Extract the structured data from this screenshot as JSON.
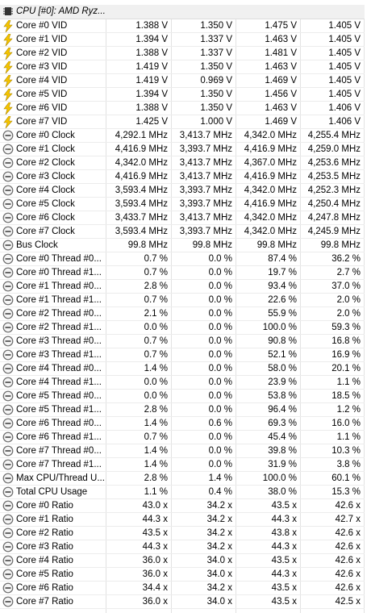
{
  "header": {
    "title": "CPU [#0]: AMD Ryz..."
  },
  "sections": [
    {
      "rows": [
        [
          "Core #0 VID",
          "1.388 V",
          "1.350 V",
          "1.475 V",
          "1.405 V"
        ],
        [
          "Core #1 VID",
          "1.394 V",
          "1.337 V",
          "1.463 V",
          "1.405 V"
        ],
        [
          "Core #2 VID",
          "1.388 V",
          "1.337 V",
          "1.481 V",
          "1.405 V"
        ],
        [
          "Core #3 VID",
          "1.419 V",
          "1.350 V",
          "1.463 V",
          "1.405 V"
        ],
        [
          "Core #4 VID",
          "1.419 V",
          "0.969 V",
          "1.469 V",
          "1.405 V"
        ],
        [
          "Core #5 VID",
          "1.394 V",
          "1.350 V",
          "1.456 V",
          "1.405 V"
        ],
        [
          "Core #6 VID",
          "1.388 V",
          "1.350 V",
          "1.463 V",
          "1.406 V"
        ],
        [
          "Core #7 VID",
          "1.425 V",
          "1.000 V",
          "1.469 V",
          "1.406 V"
        ]
      ]
    },
    {
      "rows": [
        [
          "Core #0 Clock",
          "4,292.1 MHz",
          "3,413.7 MHz",
          "4,342.0 MHz",
          "4,255.4 MHz"
        ],
        [
          "Core #1 Clock",
          "4,416.9 MHz",
          "3,393.7 MHz",
          "4,416.9 MHz",
          "4,259.0 MHz"
        ],
        [
          "Core #2 Clock",
          "4,342.0 MHz",
          "3,413.7 MHz",
          "4,367.0 MHz",
          "4,253.6 MHz"
        ],
        [
          "Core #3 Clock",
          "4,416.9 MHz",
          "3,413.7 MHz",
          "4,416.9 MHz",
          "4,253.5 MHz"
        ],
        [
          "Core #4 Clock",
          "3,593.4 MHz",
          "3,393.7 MHz",
          "4,342.0 MHz",
          "4,252.3 MHz"
        ],
        [
          "Core #5 Clock",
          "3,593.4 MHz",
          "3,393.7 MHz",
          "4,416.9 MHz",
          "4,250.4 MHz"
        ],
        [
          "Core #6 Clock",
          "3,433.7 MHz",
          "3,413.7 MHz",
          "4,342.0 MHz",
          "4,247.8 MHz"
        ],
        [
          "Core #7 Clock",
          "3,593.4 MHz",
          "3,393.7 MHz",
          "4,342.0 MHz",
          "4,245.9 MHz"
        ],
        [
          "Bus Clock",
          "99.8 MHz",
          "99.8 MHz",
          "99.8 MHz",
          "99.8 MHz"
        ],
        [
          "Core #0 Thread #0...",
          "0.7 %",
          "0.0 %",
          "87.4 %",
          "36.2 %"
        ],
        [
          "Core #0 Thread #1...",
          "0.7 %",
          "0.0 %",
          "19.7 %",
          "2.7 %"
        ],
        [
          "Core #1 Thread #0...",
          "2.8 %",
          "0.0 %",
          "93.4 %",
          "37.0 %"
        ],
        [
          "Core #1 Thread #1...",
          "0.7 %",
          "0.0 %",
          "22.6 %",
          "2.0 %"
        ],
        [
          "Core #2 Thread #0...",
          "2.1 %",
          "0.0 %",
          "55.9 %",
          "2.0 %"
        ],
        [
          "Core #2 Thread #1...",
          "0.0 %",
          "0.0 %",
          "100.0 %",
          "59.3 %"
        ],
        [
          "Core #3 Thread #0...",
          "0.7 %",
          "0.0 %",
          "90.8 %",
          "16.8 %"
        ],
        [
          "Core #3 Thread #1...",
          "0.7 %",
          "0.0 %",
          "52.1 %",
          "16.9 %"
        ],
        [
          "Core #4 Thread #0...",
          "1.4 %",
          "0.0 %",
          "58.0 %",
          "20.1 %"
        ],
        [
          "Core #4 Thread #1...",
          "0.0 %",
          "0.0 %",
          "23.9 %",
          "1.1 %"
        ],
        [
          "Core #5 Thread #0...",
          "0.0 %",
          "0.0 %",
          "53.8 %",
          "18.5 %"
        ],
        [
          "Core #5 Thread #1...",
          "2.8 %",
          "0.0 %",
          "96.4 %",
          "1.2 %"
        ],
        [
          "Core #6 Thread #0...",
          "1.4 %",
          "0.6 %",
          "69.3 %",
          "16.0 %"
        ],
        [
          "Core #6 Thread #1...",
          "0.7 %",
          "0.0 %",
          "45.4 %",
          "1.1 %"
        ],
        [
          "Core #7 Thread #0...",
          "1.4 %",
          "0.0 %",
          "39.8 %",
          "10.3 %"
        ],
        [
          "Core #7 Thread #1...",
          "1.4 %",
          "0.0 %",
          "31.9 %",
          "3.8 %"
        ],
        [
          "Max CPU/Thread U...",
          "2.8 %",
          "1.4 %",
          "100.0 %",
          "60.1 %"
        ],
        [
          "Total CPU Usage",
          "1.1 %",
          "0.4 %",
          "38.0 %",
          "15.3 %"
        ],
        [
          "Core #0 Ratio",
          "43.0 x",
          "34.2 x",
          "43.5 x",
          "42.6 x"
        ],
        [
          "Core #1 Ratio",
          "44.3 x",
          "34.2 x",
          "44.3 x",
          "42.7 x"
        ],
        [
          "Core #2 Ratio",
          "43.5 x",
          "34.2 x",
          "43.8 x",
          "42.6 x"
        ],
        [
          "Core #3 Ratio",
          "44.3 x",
          "34.2 x",
          "44.3 x",
          "42.6 x"
        ],
        [
          "Core #4 Ratio",
          "36.0 x",
          "34.0 x",
          "43.5 x",
          "42.6 x"
        ],
        [
          "Core #5 Ratio",
          "36.0 x",
          "34.0 x",
          "44.3 x",
          "42.6 x"
        ],
        [
          "Core #6 Ratio",
          "34.4 x",
          "34.2 x",
          "43.5 x",
          "42.6 x"
        ],
        [
          "Core #7 Ratio",
          "36.0 x",
          "34.0 x",
          "43.5 x",
          "42.5 x"
        ]
      ]
    }
  ]
}
